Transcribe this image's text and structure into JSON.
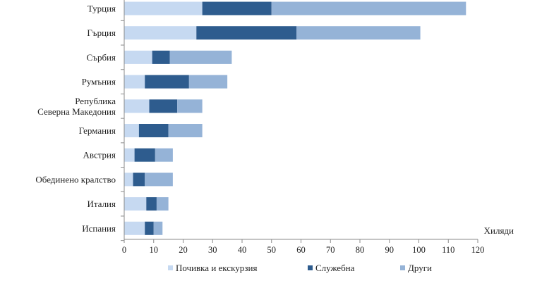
{
  "chart_data": {
    "type": "bar",
    "orientation": "horizontal",
    "stacked": true,
    "title": "",
    "xlabel": "Хиляди",
    "ylabel": "",
    "xlim": [
      0,
      120
    ],
    "x_ticks": [
      0,
      10,
      20,
      30,
      40,
      50,
      60,
      70,
      80,
      90,
      100,
      110,
      120
    ],
    "grid": false,
    "legend_position": "bottom",
    "categories": [
      [
        "Турция"
      ],
      [
        "Гърция"
      ],
      [
        "Сърбия"
      ],
      [
        "Румъния"
      ],
      [
        "Република",
        "Северна Македония"
      ],
      [
        "Германия"
      ],
      [
        "Австрия"
      ],
      [
        "Обединено кралство"
      ],
      [
        "Италия"
      ],
      [
        "Испания"
      ]
    ],
    "series": [
      {
        "name": "Почивка и екскурзия",
        "color": "#c6d9f1",
        "values": [
          26.5,
          24.5,
          9.5,
          7.0,
          8.5,
          5.0,
          3.5,
          3.0,
          7.5,
          7.0
        ]
      },
      {
        "name": "Служебна",
        "color": "#2e5c8e",
        "values": [
          23.5,
          34.0,
          6.0,
          15.0,
          9.5,
          10.0,
          7.0,
          4.0,
          3.5,
          3.0
        ]
      },
      {
        "name": "Други",
        "color": "#95b3d7",
        "values": [
          66.0,
          42.0,
          21.0,
          13.0,
          8.5,
          11.5,
          6.0,
          9.5,
          4.0,
          3.0
        ]
      }
    ]
  }
}
